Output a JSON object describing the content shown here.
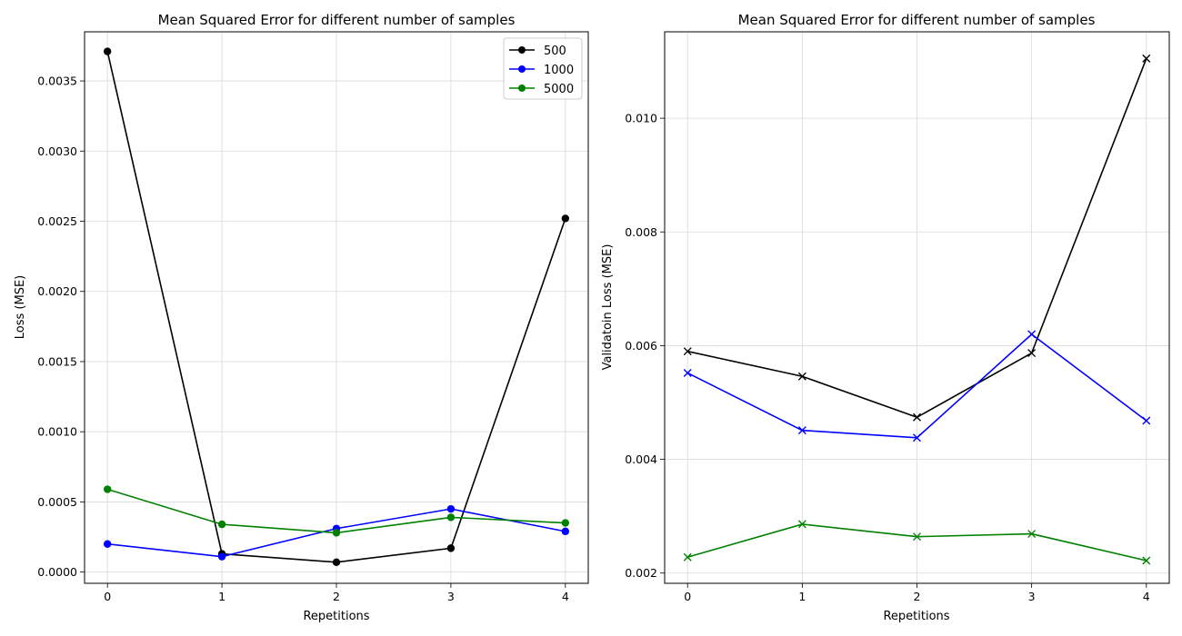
{
  "chart_data": [
    {
      "type": "line",
      "title": "Mean Squared Error for different number of samples",
      "xlabel": "Repetitions",
      "ylabel": "Loss (MSE)",
      "x": [
        0,
        1,
        2,
        3,
        4
      ],
      "xticks": [
        "0",
        "1",
        "2",
        "3",
        "4"
      ],
      "ylim": [
        -8e-05,
        0.00385
      ],
      "yticks": [
        "0.0000",
        "0.0005",
        "0.0010",
        "0.0015",
        "0.0020",
        "0.0025",
        "0.0030",
        "0.0035"
      ],
      "ytick_values": [
        0.0,
        0.0005,
        0.001,
        0.0015,
        0.002,
        0.0025,
        0.003,
        0.0035
      ],
      "grid": true,
      "legend_position": "top-right",
      "marker": "circle",
      "series": [
        {
          "name": "500",
          "color": "#000000",
          "values": [
            0.00371,
            0.00013,
            7e-05,
            0.00017,
            0.00252
          ]
        },
        {
          "name": "1000",
          "color": "#0000ff",
          "values": [
            0.0002,
            0.00011,
            0.00031,
            0.00045,
            0.00029
          ]
        },
        {
          "name": "5000",
          "color": "#008000",
          "values": [
            0.00059,
            0.00034,
            0.00028,
            0.00039,
            0.00035
          ]
        }
      ]
    },
    {
      "type": "line",
      "title": "Mean Squared Error for different number of samples",
      "xlabel": "Repetitions",
      "ylabel": "Validatoin Loss (MSE)",
      "x": [
        0,
        1,
        2,
        3,
        4
      ],
      "xticks": [
        "0",
        "1",
        "2",
        "3",
        "4"
      ],
      "ylim": [
        0.00182,
        0.01152
      ],
      "yticks": [
        "0.002",
        "0.004",
        "0.006",
        "0.008",
        "0.010"
      ],
      "ytick_values": [
        0.002,
        0.004,
        0.006,
        0.008,
        0.01
      ],
      "grid": true,
      "marker": "x",
      "series": [
        {
          "color": "#000000",
          "values": [
            0.0059,
            0.00546,
            0.00474,
            0.00587,
            0.01105
          ]
        },
        {
          "color": "#0000ff",
          "values": [
            0.00552,
            0.00451,
            0.00438,
            0.0062,
            0.00468
          ]
        },
        {
          "color": "#008000",
          "values": [
            0.00228,
            0.00286,
            0.00264,
            0.00269,
            0.00222
          ]
        }
      ]
    }
  ]
}
